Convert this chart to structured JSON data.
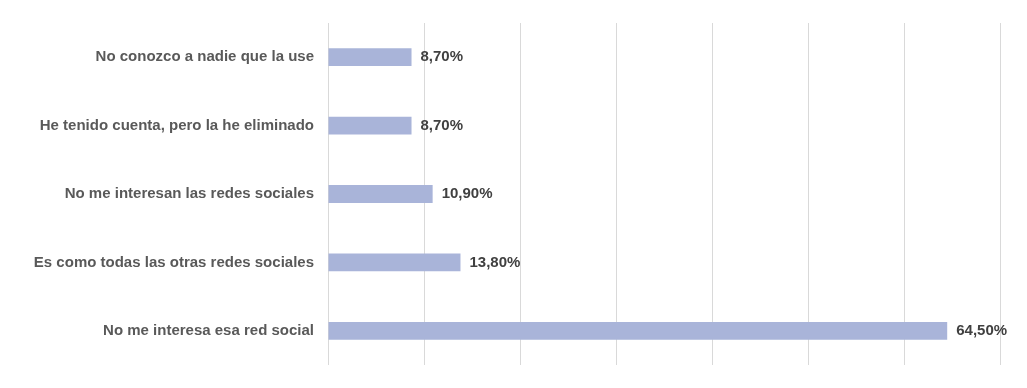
{
  "chart_data": {
    "type": "bar",
    "orientation": "horizontal",
    "categories": [
      "No conozco a nadie que la use",
      "He tenido cuenta, pero la he eliminado",
      "No me interesan las redes sociales",
      "Es como todas las otras redes sociales",
      "No me interesa esa red social"
    ],
    "values": [
      8.7,
      8.7,
      10.9,
      13.8,
      64.5
    ],
    "value_labels": [
      "8,70%",
      "8,70%",
      "10,90%",
      "13,80%",
      "64,50%"
    ],
    "color": "#a9b4d9",
    "xlim": [
      0,
      70
    ],
    "xticks": [
      {
        "value": 0,
        "label": null
      },
      {
        "value": 10,
        "label": null
      },
      {
        "value": 20,
        "label": null
      },
      {
        "value": 30,
        "label": null
      },
      {
        "value": 40,
        "label": null
      },
      {
        "value": 50,
        "label": null
      },
      {
        "value": 60,
        "label": null
      },
      {
        "value": 70,
        "label": null
      }
    ],
    "grid": "x",
    "legend": false,
    "tick_labels": "y"
  }
}
